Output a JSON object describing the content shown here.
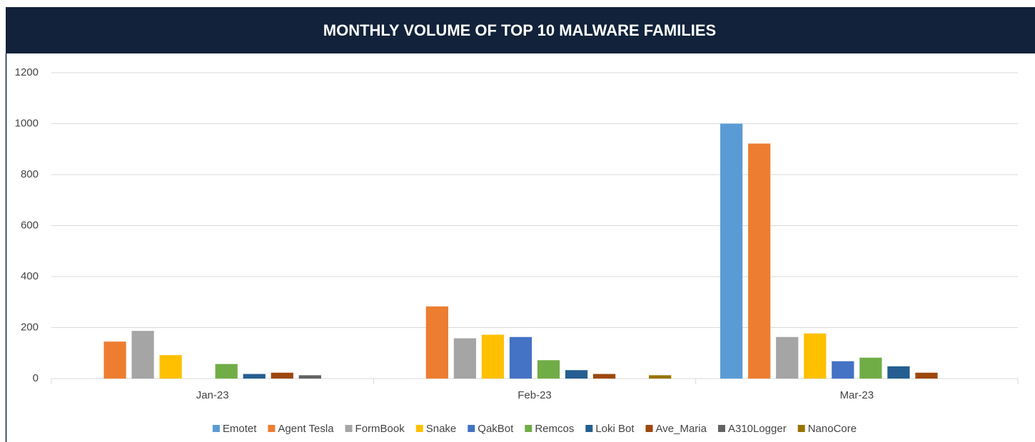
{
  "chart_data": {
    "type": "bar",
    "title": "MONTHLY VOLUME OF TOP 10 MALWARE FAMILIES",
    "categories": [
      "Jan-23",
      "Feb-23",
      "Mar-23"
    ],
    "series": [
      {
        "name": "Emotet",
        "color": "#5b9bd5",
        "values": [
          0,
          0,
          1000
        ]
      },
      {
        "name": "Agent Tesla",
        "color": "#ed7d31",
        "values": [
          145,
          283,
          922
        ]
      },
      {
        "name": "FormBook",
        "color": "#a5a5a5",
        "values": [
          187,
          158,
          163
        ]
      },
      {
        "name": "Snake",
        "color": "#ffc000",
        "values": [
          92,
          172,
          177
        ]
      },
      {
        "name": "QakBot",
        "color": "#4472c4",
        "values": [
          0,
          163,
          68
        ]
      },
      {
        "name": "Remcos",
        "color": "#70ad47",
        "values": [
          57,
          72,
          82
        ]
      },
      {
        "name": "Loki Bot",
        "color": "#255e91",
        "values": [
          18,
          33,
          48
        ]
      },
      {
        "name": "Ave_Maria",
        "color": "#9e480e",
        "values": [
          23,
          18,
          23
        ]
      },
      {
        "name": "A310Logger",
        "color": "#636363",
        "values": [
          13,
          0,
          0
        ]
      },
      {
        "name": "NanoCore",
        "color": "#997300",
        "values": [
          0,
          13,
          0
        ]
      }
    ],
    "ylim": [
      0,
      1200
    ],
    "yticks": [
      0,
      200,
      400,
      600,
      800,
      1000,
      1200
    ],
    "grid": true,
    "legend": "bottom"
  }
}
